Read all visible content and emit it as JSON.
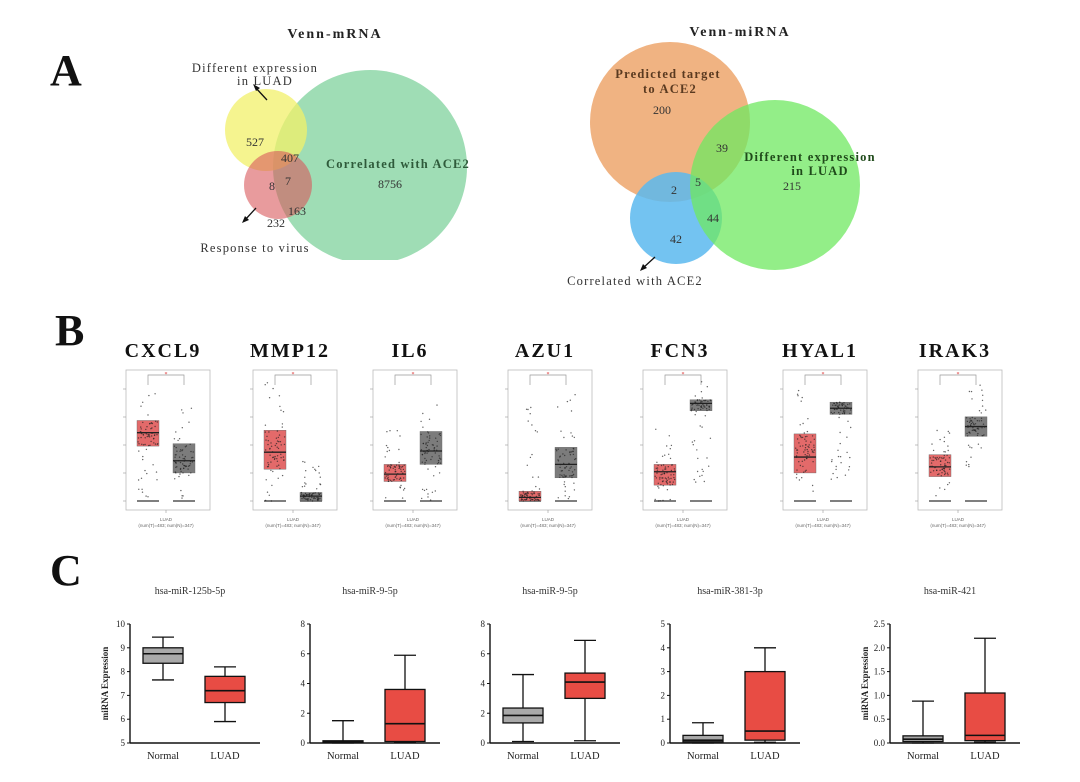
{
  "figure": {
    "panel_letters": [
      "A",
      "B",
      "C"
    ]
  },
  "chart_data": [
    {
      "type": "venn",
      "panel": "A",
      "title": "Venn-mRNA",
      "sets": [
        {
          "name": "Different expression in LUAD",
          "label_lines": [
            "Different expression",
            "in LUAD"
          ],
          "color": "#f2f06a"
        },
        {
          "name": "Correlated with ACE2",
          "label_lines": [
            "Correlated with ACE2"
          ],
          "color": "#7fd19c"
        },
        {
          "name": "Response to virus",
          "label_lines": [
            "Response to virus"
          ],
          "color": "#e8787a"
        }
      ],
      "regions": {
        "diff_only": 527,
        "diff_and_ace2": 407,
        "all_three": 7,
        "diff_and_virus": 8,
        "virus_and_ace2": 163,
        "virus_only": 232,
        "ace2_only": 8756
      }
    },
    {
      "type": "venn",
      "panel": "A",
      "title": "Venn-miRNA",
      "sets": [
        {
          "name": "Predicted target to ACE2",
          "label_lines": [
            "Predicted target",
            "to ACE2"
          ],
          "color": "#eda66c"
        },
        {
          "name": "Different expression in LUAD",
          "label_lines": [
            "Different expression",
            "in LUAD"
          ],
          "color": "#6fe860"
        },
        {
          "name": "Correlated with ACE2",
          "label_lines": [
            "Correlated with ACE2"
          ],
          "color": "#5bb8ee"
        }
      ],
      "regions": {
        "predicted_only": 200,
        "predicted_and_diff": 39,
        "predicted_and_corr": 2,
        "all_three": 5,
        "diff_and_corr": 44,
        "corr_only": 42,
        "diff_only": 215
      }
    },
    {
      "type": "boxplot",
      "panel": "B",
      "xlabel": "LUAD",
      "sublabel": "(num(T)=483; num(N)=347)",
      "significance": "*",
      "tumor_color": "#e05a5a",
      "normal_color": "#6e6e6e",
      "note": "values on normalized 0-1 scale (axis tick labels illegible)",
      "genes": [
        {
          "name": "CXCL9",
          "tumor": {
            "min": 0.0,
            "q1": 0.45,
            "median": 0.56,
            "q3": 0.66,
            "max": 0.97
          },
          "normal": {
            "min": 0.0,
            "q1": 0.23,
            "median": 0.33,
            "q3": 0.47,
            "max": 0.8
          }
        },
        {
          "name": "MMP12",
          "tumor": {
            "min": 0.0,
            "q1": 0.26,
            "median": 0.4,
            "q3": 0.58,
            "max": 0.98
          },
          "normal": {
            "min": 0.0,
            "q1": 0.0,
            "median": 0.04,
            "q3": 0.07,
            "max": 0.35
          }
        },
        {
          "name": "IL6",
          "tumor": {
            "min": 0.02,
            "q1": 0.16,
            "median": 0.22,
            "q3": 0.3,
            "max": 0.6
          },
          "normal": {
            "min": 0.0,
            "q1": 0.3,
            "median": 0.41,
            "q3": 0.57,
            "max": 0.8
          }
        },
        {
          "name": "AZU1",
          "tumor": {
            "min": 0.0,
            "q1": 0.0,
            "median": 0.03,
            "q3": 0.08,
            "max": 0.78
          },
          "normal": {
            "min": 0.0,
            "q1": 0.19,
            "median": 0.3,
            "q3": 0.44,
            "max": 0.97
          }
        },
        {
          "name": "FCN3",
          "tumor": {
            "min": 0.0,
            "q1": 0.13,
            "median": 0.24,
            "q3": 0.3,
            "max": 0.6
          },
          "normal": {
            "min": 0.14,
            "q1": 0.74,
            "median": 0.8,
            "q3": 0.83,
            "max": 0.98
          }
        },
        {
          "name": "HYAL1",
          "tumor": {
            "min": 0.03,
            "q1": 0.23,
            "median": 0.36,
            "q3": 0.55,
            "max": 0.93
          },
          "normal": {
            "min": 0.16,
            "q1": 0.71,
            "median": 0.76,
            "q3": 0.81,
            "max": 0.9
          }
        },
        {
          "name": "IRAK3",
          "tumor": {
            "min": 0.03,
            "q1": 0.2,
            "median": 0.28,
            "q3": 0.38,
            "max": 0.65
          },
          "normal": {
            "min": 0.28,
            "q1": 0.53,
            "median": 0.61,
            "q3": 0.69,
            "max": 0.95
          }
        }
      ]
    },
    {
      "type": "boxplot",
      "panel": "C",
      "ylabel": "miRNA Expression",
      "categories": [
        "Normal",
        "LUAD"
      ],
      "normal_color": "#a9a9a9",
      "luad_color": "#e84c44",
      "plots": [
        {
          "title": "hsa-miR-125b-5p",
          "ylim": [
            5,
            10
          ],
          "ticks": [
            5,
            6,
            7,
            8,
            9,
            10
          ],
          "normal": {
            "min": 7.65,
            "q1": 8.35,
            "median": 8.75,
            "q3": 9.0,
            "max": 9.45
          },
          "luad": {
            "min": 5.9,
            "q1": 6.7,
            "median": 7.2,
            "q3": 7.8,
            "max": 8.2
          }
        },
        {
          "title": "hsa-miR-9-5p",
          "ylim": [
            0,
            8
          ],
          "ticks": [
            0,
            2,
            4,
            6,
            8
          ],
          "normal": {
            "min": 0.0,
            "q1": 0.02,
            "median": 0.08,
            "q3": 0.15,
            "max": 1.5
          },
          "luad": {
            "min": 0.05,
            "q1": 0.1,
            "median": 1.3,
            "q3": 3.6,
            "max": 5.9
          }
        },
        {
          "title": "hsa-miR-9-5p",
          "ylim": [
            0,
            8
          ],
          "ticks": [
            0,
            2,
            4,
            6,
            8
          ],
          "normal": {
            "min": 0.1,
            "q1": 1.35,
            "median": 1.85,
            "q3": 2.35,
            "max": 4.6
          },
          "luad": {
            "min": 0.15,
            "q1": 3.0,
            "median": 4.1,
            "q3": 4.7,
            "max": 6.9
          }
        },
        {
          "title": "hsa-miR-381-3p",
          "ylim": [
            0,
            5
          ],
          "ticks": [
            0,
            1,
            2,
            3,
            4,
            5
          ],
          "normal": {
            "min": 0.0,
            "q1": 0.05,
            "median": 0.12,
            "q3": 0.32,
            "max": 0.85
          },
          "luad": {
            "min": 0.03,
            "q1": 0.12,
            "median": 0.5,
            "q3": 3.0,
            "max": 4.0
          }
        },
        {
          "title": "hsa-miR-421",
          "ylim": [
            0,
            2.5
          ],
          "ticks": [
            "0.0",
            "0.5",
            "1.0",
            "1.5",
            "2.0",
            "2.5"
          ],
          "normal": {
            "min": 0.0,
            "q1": 0.03,
            "median": 0.08,
            "q3": 0.15,
            "max": 0.88
          },
          "luad": {
            "min": 0.02,
            "q1": 0.05,
            "median": 0.16,
            "q3": 1.05,
            "max": 2.2
          }
        }
      ]
    }
  ]
}
